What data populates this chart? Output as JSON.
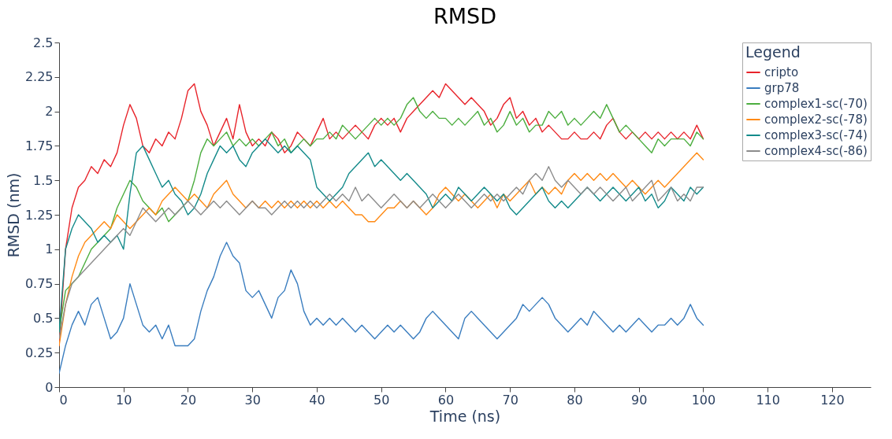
{
  "chart_data": {
    "type": "line",
    "title": "RMSD",
    "xlabel": "Time (ns)",
    "ylabel": "RMSD (nm)",
    "legend_title": "Legend",
    "legend": "top right",
    "grid": false,
    "xlim": [
      0,
      126
    ],
    "xticks": [
      0,
      10,
      20,
      30,
      40,
      50,
      60,
      70,
      80,
      90,
      100,
      110,
      120
    ],
    "ylim": [
      0,
      2.5
    ],
    "yticks": [
      0,
      0.25,
      0.5,
      0.75,
      1,
      1.25,
      1.5,
      1.75,
      2,
      2.25,
      2.5
    ],
    "x": [
      0,
      1,
      2,
      3,
      4,
      5,
      6,
      7,
      8,
      9,
      10,
      11,
      12,
      13,
      14,
      15,
      16,
      17,
      18,
      19,
      20,
      21,
      22,
      23,
      24,
      25,
      26,
      27,
      28,
      29,
      30,
      31,
      32,
      33,
      34,
      35,
      36,
      37,
      38,
      39,
      40,
      41,
      42,
      43,
      44,
      45,
      46,
      47,
      48,
      49,
      50,
      51,
      52,
      53,
      54,
      55,
      56,
      57,
      58,
      59,
      60,
      61,
      62,
      63,
      64,
      65,
      66,
      67,
      68,
      69,
      70,
      71,
      72,
      73,
      74,
      75,
      76,
      77,
      78,
      79,
      80,
      81,
      82,
      83,
      84,
      85,
      86,
      87,
      88,
      89,
      90,
      91,
      92,
      93,
      94,
      95,
      96,
      97,
      98,
      99,
      100
    ],
    "series": [
      {
        "name": "cripto",
        "color": "#e8242b",
        "values": [
          0.3,
          1.0,
          1.3,
          1.45,
          1.5,
          1.6,
          1.55,
          1.65,
          1.6,
          1.7,
          1.9,
          2.05,
          1.95,
          1.75,
          1.7,
          1.8,
          1.75,
          1.85,
          1.8,
          1.95,
          2.15,
          2.2,
          2.0,
          1.9,
          1.75,
          1.85,
          1.95,
          1.8,
          2.05,
          1.85,
          1.75,
          1.8,
          1.75,
          1.85,
          1.8,
          1.7,
          1.75,
          1.85,
          1.8,
          1.75,
          1.85,
          1.95,
          1.8,
          1.85,
          1.8,
          1.85,
          1.9,
          1.85,
          1.8,
          1.9,
          1.95,
          1.9,
          1.95,
          1.85,
          1.95,
          2.0,
          2.05,
          2.1,
          2.15,
          2.1,
          2.2,
          2.15,
          2.1,
          2.05,
          2.1,
          2.05,
          2.0,
          1.9,
          1.95,
          2.05,
          2.1,
          1.95,
          2.0,
          1.9,
          1.95,
          1.85,
          1.9,
          1.85,
          1.8,
          1.8,
          1.85,
          1.8,
          1.8,
          1.85,
          1.8,
          1.9,
          1.95,
          1.85,
          1.8,
          1.85,
          1.8,
          1.85,
          1.8,
          1.85,
          1.8,
          1.85,
          1.8,
          1.85,
          1.8,
          1.9,
          1.8
        ]
      },
      {
        "name": "grp78",
        "color": "#3a7dbf",
        "values": [
          0.1,
          0.3,
          0.45,
          0.55,
          0.45,
          0.6,
          0.65,
          0.5,
          0.35,
          0.4,
          0.5,
          0.75,
          0.6,
          0.45,
          0.4,
          0.45,
          0.35,
          0.45,
          0.3,
          0.3,
          0.3,
          0.35,
          0.55,
          0.7,
          0.8,
          0.95,
          1.05,
          0.95,
          0.9,
          0.7,
          0.65,
          0.7,
          0.6,
          0.5,
          0.65,
          0.7,
          0.85,
          0.75,
          0.55,
          0.45,
          0.5,
          0.45,
          0.5,
          0.45,
          0.5,
          0.45,
          0.4,
          0.45,
          0.4,
          0.35,
          0.4,
          0.45,
          0.4,
          0.45,
          0.4,
          0.35,
          0.4,
          0.5,
          0.55,
          0.5,
          0.45,
          0.4,
          0.35,
          0.5,
          0.55,
          0.5,
          0.45,
          0.4,
          0.35,
          0.4,
          0.45,
          0.5,
          0.6,
          0.55,
          0.6,
          0.65,
          0.6,
          0.5,
          0.45,
          0.4,
          0.45,
          0.5,
          0.45,
          0.55,
          0.5,
          0.45,
          0.4,
          0.45,
          0.4,
          0.45,
          0.5,
          0.45,
          0.4,
          0.45,
          0.45,
          0.5,
          0.45,
          0.5,
          0.6,
          0.5,
          0.45
        ]
      },
      {
        "name": "complex1-sc(-70)",
        "color": "#4cae3f",
        "values": [
          0.4,
          0.7,
          0.75,
          0.8,
          0.9,
          1.0,
          1.05,
          1.1,
          1.15,
          1.3,
          1.4,
          1.5,
          1.45,
          1.35,
          1.3,
          1.25,
          1.3,
          1.2,
          1.25,
          1.3,
          1.35,
          1.5,
          1.7,
          1.8,
          1.75,
          1.8,
          1.85,
          1.75,
          1.8,
          1.75,
          1.8,
          1.75,
          1.8,
          1.85,
          1.75,
          1.8,
          1.7,
          1.75,
          1.8,
          1.75,
          1.8,
          1.8,
          1.85,
          1.8,
          1.9,
          1.85,
          1.8,
          1.85,
          1.9,
          1.95,
          1.9,
          1.95,
          1.9,
          1.95,
          2.05,
          2.1,
          2.0,
          1.95,
          2.0,
          1.95,
          1.95,
          1.9,
          1.95,
          1.9,
          1.95,
          2.0,
          1.9,
          1.95,
          1.85,
          1.9,
          2.0,
          1.9,
          1.95,
          1.85,
          1.9,
          1.9,
          2.0,
          1.95,
          2.0,
          1.9,
          1.95,
          1.9,
          1.95,
          2.0,
          1.95,
          2.05,
          1.95,
          1.85,
          1.9,
          1.85,
          1.8,
          1.75,
          1.7,
          1.8,
          1.75,
          1.8,
          1.8,
          1.8,
          1.75,
          1.85,
          1.8
        ]
      },
      {
        "name": "complex2-sc(-78)",
        "color": "#ff8a14",
        "values": [
          0.3,
          0.6,
          0.8,
          0.95,
          1.05,
          1.1,
          1.15,
          1.2,
          1.15,
          1.25,
          1.2,
          1.15,
          1.2,
          1.25,
          1.3,
          1.25,
          1.35,
          1.4,
          1.45,
          1.4,
          1.35,
          1.4,
          1.35,
          1.3,
          1.4,
          1.45,
          1.5,
          1.4,
          1.35,
          1.3,
          1.35,
          1.3,
          1.35,
          1.3,
          1.35,
          1.3,
          1.35,
          1.3,
          1.35,
          1.3,
          1.35,
          1.3,
          1.35,
          1.3,
          1.35,
          1.3,
          1.25,
          1.25,
          1.2,
          1.2,
          1.25,
          1.3,
          1.3,
          1.35,
          1.3,
          1.35,
          1.3,
          1.25,
          1.3,
          1.4,
          1.45,
          1.4,
          1.35,
          1.4,
          1.35,
          1.3,
          1.35,
          1.4,
          1.3,
          1.4,
          1.35,
          1.4,
          1.45,
          1.5,
          1.4,
          1.45,
          1.4,
          1.45,
          1.4,
          1.5,
          1.55,
          1.5,
          1.55,
          1.5,
          1.55,
          1.5,
          1.55,
          1.5,
          1.45,
          1.5,
          1.45,
          1.4,
          1.45,
          1.5,
          1.45,
          1.5,
          1.55,
          1.6,
          1.65,
          1.7,
          1.65
        ]
      },
      {
        "name": "complex3-sc(-74)",
        "color": "#138a8a",
        "values": [
          0.4,
          1.0,
          1.15,
          1.25,
          1.2,
          1.15,
          1.05,
          1.1,
          1.05,
          1.1,
          1.0,
          1.4,
          1.7,
          1.75,
          1.65,
          1.55,
          1.45,
          1.5,
          1.4,
          1.35,
          1.25,
          1.3,
          1.4,
          1.55,
          1.65,
          1.75,
          1.7,
          1.75,
          1.65,
          1.6,
          1.7,
          1.75,
          1.8,
          1.75,
          1.7,
          1.75,
          1.7,
          1.75,
          1.7,
          1.65,
          1.45,
          1.4,
          1.35,
          1.4,
          1.45,
          1.55,
          1.6,
          1.65,
          1.7,
          1.6,
          1.65,
          1.6,
          1.55,
          1.5,
          1.55,
          1.5,
          1.45,
          1.4,
          1.3,
          1.35,
          1.4,
          1.35,
          1.45,
          1.4,
          1.35,
          1.4,
          1.45,
          1.4,
          1.35,
          1.4,
          1.3,
          1.25,
          1.3,
          1.35,
          1.4,
          1.45,
          1.35,
          1.3,
          1.35,
          1.3,
          1.35,
          1.4,
          1.45,
          1.4,
          1.35,
          1.4,
          1.45,
          1.4,
          1.35,
          1.4,
          1.45,
          1.35,
          1.4,
          1.3,
          1.35,
          1.45,
          1.4,
          1.35,
          1.45,
          1.4,
          1.45
        ]
      },
      {
        "name": "complex4-sc(-86)",
        "color": "#8c8c8c",
        "values": [
          0.35,
          0.6,
          0.75,
          0.8,
          0.85,
          0.9,
          0.95,
          1.0,
          1.05,
          1.1,
          1.15,
          1.1,
          1.2,
          1.3,
          1.25,
          1.2,
          1.25,
          1.3,
          1.25,
          1.3,
          1.35,
          1.3,
          1.25,
          1.3,
          1.35,
          1.3,
          1.35,
          1.3,
          1.25,
          1.3,
          1.35,
          1.3,
          1.3,
          1.25,
          1.3,
          1.35,
          1.3,
          1.35,
          1.3,
          1.35,
          1.3,
          1.35,
          1.4,
          1.35,
          1.4,
          1.35,
          1.45,
          1.35,
          1.4,
          1.35,
          1.3,
          1.35,
          1.4,
          1.35,
          1.3,
          1.35,
          1.3,
          1.35,
          1.4,
          1.35,
          1.3,
          1.35,
          1.4,
          1.35,
          1.3,
          1.35,
          1.4,
          1.35,
          1.4,
          1.35,
          1.4,
          1.45,
          1.4,
          1.5,
          1.55,
          1.5,
          1.6,
          1.5,
          1.45,
          1.5,
          1.45,
          1.4,
          1.45,
          1.4,
          1.45,
          1.4,
          1.35,
          1.4,
          1.45,
          1.35,
          1.4,
          1.45,
          1.5,
          1.35,
          1.4,
          1.45,
          1.35,
          1.4,
          1.35,
          1.45,
          1.45
        ]
      }
    ]
  }
}
